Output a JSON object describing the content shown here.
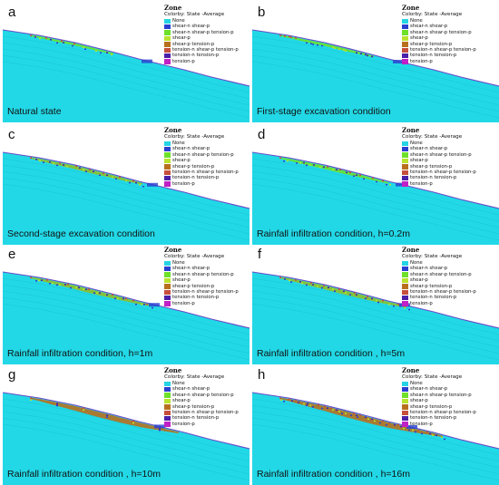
{
  "legend": {
    "title": "Zone",
    "subtitle": "Colorby: State  -Average",
    "items": [
      {
        "label": "None",
        "color": "#25d4e4"
      },
      {
        "label": "shear-n shear-p",
        "color": "#2a3fd0"
      },
      {
        "label": "shear-n shear-p tension-p",
        "color": "#6de02a"
      },
      {
        "label": "shear-p",
        "color": "#b9e32c"
      },
      {
        "label": "shear-p tension-p",
        "color": "#b8701e"
      },
      {
        "label": "tension-n shear-p tension-p",
        "color": "#c6503c"
      },
      {
        "label": "tension-n tension-p",
        "color": "#4a20a8"
      },
      {
        "label": "tension-p",
        "color": "#c020c6"
      }
    ]
  },
  "panels": [
    {
      "label": "a",
      "caption": "Natural state"
    },
    {
      "label": "b",
      "caption": "First-stage excavation condition"
    },
    {
      "label": "c",
      "caption": "Second-stage excavation condition"
    },
    {
      "label": "d",
      "caption": "Rainfall infiltration condition, h=0.2m"
    },
    {
      "label": "e",
      "caption": "Rainfall infiltration condition, h=1m"
    },
    {
      "label": "f",
      "caption": "Rainfall infiltration condition , h=5m"
    },
    {
      "label": "g",
      "caption": "Rainfall infiltration condition , h=10m"
    },
    {
      "label": "h",
      "caption": "Rainfall infiltration condition , h=16m"
    }
  ]
}
